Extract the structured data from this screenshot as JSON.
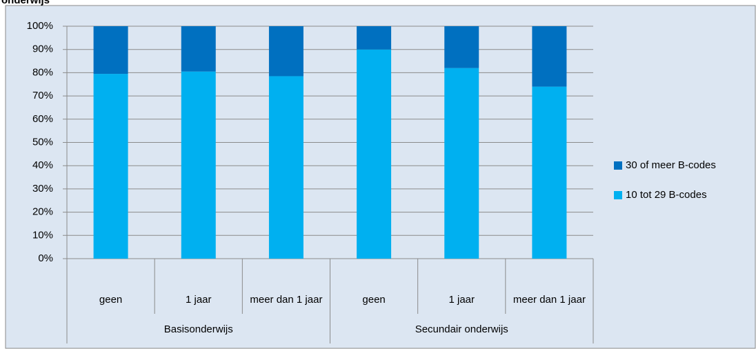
{
  "chart_data": {
    "type": "stacked_bar",
    "title": "onderwijs",
    "categories": [
      "geen",
      "1 jaar",
      "meer dan 1 jaar",
      "geen",
      "1 jaar",
      "meer dan 1 jaar"
    ],
    "groups": [
      "Basisonderwijs",
      "Secundair onderwijs"
    ],
    "series": [
      {
        "name": "10 tot 29 B-codes",
        "color": "#00b0f0",
        "values": [
          79.5,
          80.5,
          78.5,
          90,
          82,
          74
        ]
      },
      {
        "name": "30 of meer B-codes",
        "color": "#0070c0",
        "values": [
          20.5,
          19.5,
          21.5,
          10,
          18,
          26
        ]
      }
    ],
    "ylim": [
      0,
      100
    ],
    "yticks": [
      {
        "value": 0,
        "label": "0%"
      },
      {
        "value": 10,
        "label": "10%"
      },
      {
        "value": 20,
        "label": "20%"
      },
      {
        "value": 30,
        "label": "30%"
      },
      {
        "value": 40,
        "label": "40%"
      },
      {
        "value": 50,
        "label": "50%"
      },
      {
        "value": 60,
        "label": "60%"
      },
      {
        "value": 70,
        "label": "70%"
      },
      {
        "value": 80,
        "label": "80%"
      },
      {
        "value": 90,
        "label": "90%"
      },
      {
        "value": 100,
        "label": "100%"
      }
    ],
    "grid": true,
    "legend": "right"
  }
}
